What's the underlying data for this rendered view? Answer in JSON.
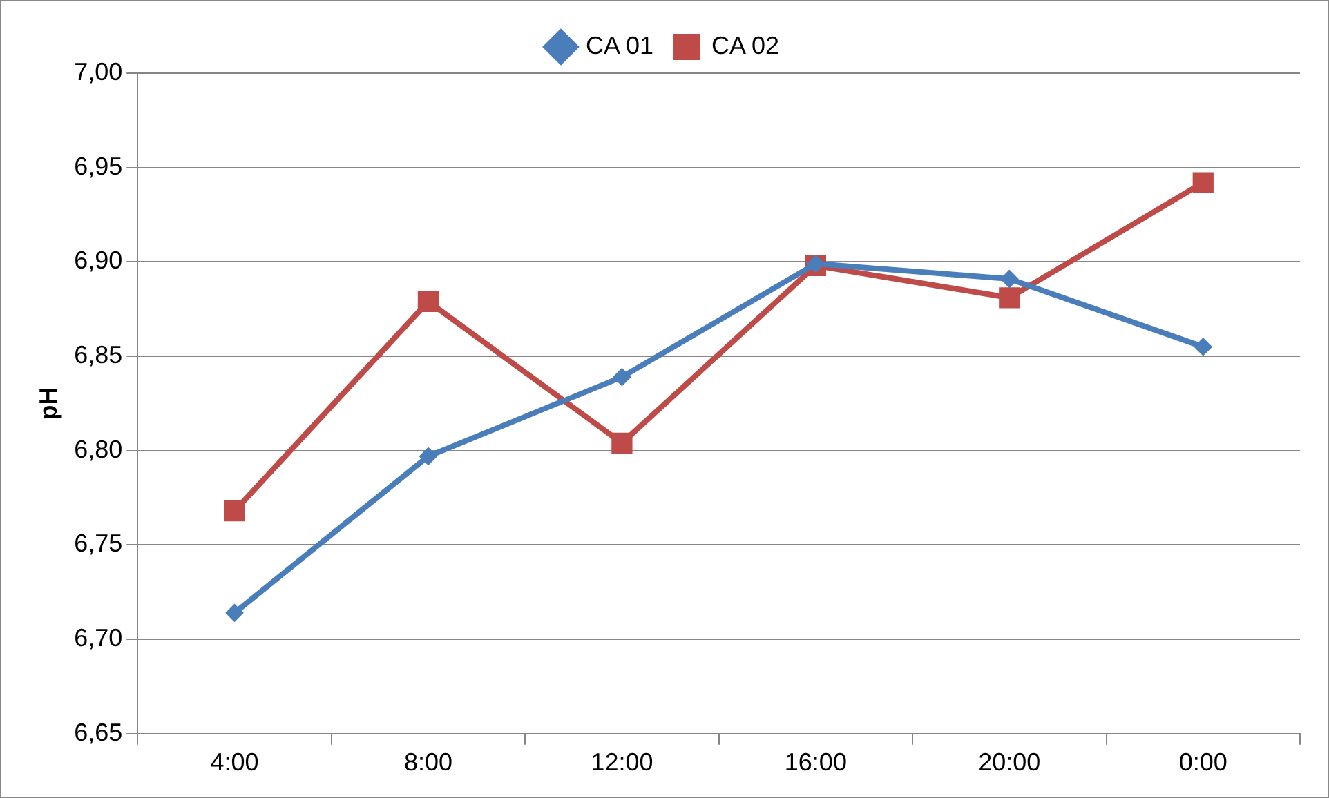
{
  "chart_data": {
    "type": "line",
    "ylabel": "pH",
    "categories": [
      "4:00",
      "8:00",
      "12:00",
      "16:00",
      "20:00",
      "0:00"
    ],
    "series": [
      {
        "name": "CA 01",
        "color": "#4a7ebb",
        "marker": "diamond",
        "values": [
          6.714,
          6.797,
          6.839,
          6.899,
          6.891,
          6.855
        ]
      },
      {
        "name": "CA 02",
        "color": "#be4b48",
        "marker": "square",
        "values": [
          6.768,
          6.879,
          6.804,
          6.898,
          6.881,
          6.942
        ]
      }
    ],
    "ylim": [
      6.65,
      7.0
    ],
    "yticks": [
      {
        "value": 6.65,
        "label": "6,65"
      },
      {
        "value": 6.7,
        "label": "6,70"
      },
      {
        "value": 6.75,
        "label": "6,75"
      },
      {
        "value": 6.8,
        "label": "6,80"
      },
      {
        "value": 6.85,
        "label": "6,85"
      },
      {
        "value": 6.9,
        "label": "6,90"
      },
      {
        "value": 6.95,
        "label": "6,95"
      },
      {
        "value": 7.0,
        "label": "7,00"
      }
    ],
    "grid": "y",
    "legend": "top",
    "line_style": "solid"
  }
}
